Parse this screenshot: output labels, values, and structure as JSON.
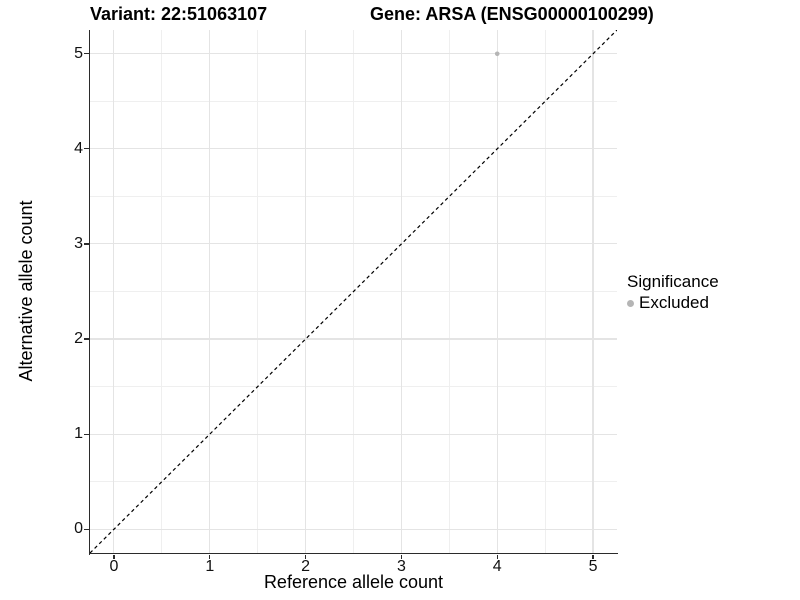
{
  "chart_data": {
    "type": "scatter",
    "title_left": "Variant: 22:51063107",
    "title_right": "Gene: ARSA (ENSG00000100299)",
    "xlabel": "Reference allele count",
    "ylabel": "Alternative allele count",
    "xlim": [
      -0.25,
      5.25
    ],
    "ylim": [
      -0.25,
      5.25
    ],
    "x_ticks": [
      0,
      1,
      2,
      3,
      4,
      5
    ],
    "y_ticks": [
      0,
      1,
      2,
      3,
      4,
      5
    ],
    "x_minor_ticks": [
      0.5,
      1.5,
      2.5,
      3.5,
      4.5
    ],
    "y_minor_ticks": [
      0.5,
      1.5,
      2.5,
      3.5,
      4.5
    ],
    "grid": "major and minor gridlines on white background",
    "points": [
      {
        "x": 4,
        "y": 5,
        "series": "Excluded"
      }
    ],
    "identity_line": {
      "equation": "y = x",
      "style": "dashed",
      "span": "full panel corner to corner"
    },
    "legend": {
      "title": "Significance",
      "position": "right",
      "items": [
        {
          "label": "Excluded",
          "color": "#b5b5b5"
        }
      ]
    }
  },
  "colors": {
    "background": "#ffffff",
    "point": "#b5b5b5",
    "grid_major": "#e4e4e4",
    "grid_minor": "#efefef",
    "axis_line": "#2b2b2b",
    "dashed_line": "#000000",
    "text": "#000000"
  }
}
